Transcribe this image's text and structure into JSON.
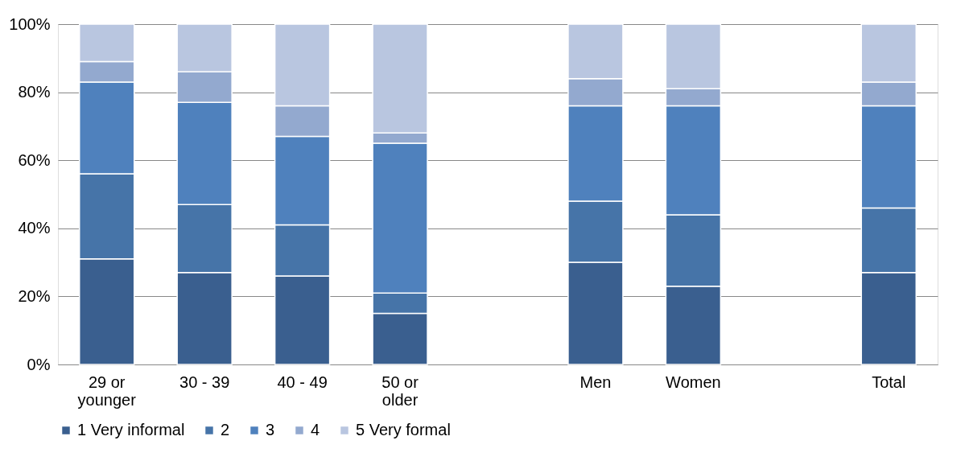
{
  "chart_data": {
    "type": "bar",
    "stacked": true,
    "categories": [
      "29 or younger",
      "30 - 39",
      "40 - 49",
      "50 or older",
      null,
      "Men",
      "Women",
      null,
      "Total"
    ],
    "series": [
      {
        "name": "1 Very informal",
        "color": "#3a5f8f",
        "values": [
          31,
          27,
          26,
          15,
          null,
          30,
          23,
          null,
          27
        ]
      },
      {
        "name": "2",
        "color": "#4674a8",
        "values": [
          25,
          20,
          15,
          6,
          null,
          18,
          21,
          null,
          19
        ]
      },
      {
        "name": "3",
        "color": "#4f81bd",
        "values": [
          27,
          30,
          26,
          44,
          null,
          28,
          32,
          null,
          30
        ]
      },
      {
        "name": "4",
        "color": "#93a9cf",
        "values": [
          6,
          9,
          9,
          3,
          null,
          8,
          5,
          null,
          7
        ]
      },
      {
        "name": "5 Very formal",
        "color": "#b9c6e0",
        "values": [
          11,
          14,
          24,
          32,
          null,
          16,
          19,
          null,
          17
        ]
      }
    ],
    "ylim": [
      0,
      100
    ],
    "yticks": [
      {
        "value": 0,
        "label": "0%"
      },
      {
        "value": 20,
        "label": "20%"
      },
      {
        "value": 40,
        "label": "40%"
      },
      {
        "value": 60,
        "label": "60%"
      },
      {
        "value": 80,
        "label": "80%"
      },
      {
        "value": 100,
        "label": "100%"
      }
    ],
    "grid": "y",
    "legend": "bottom"
  }
}
